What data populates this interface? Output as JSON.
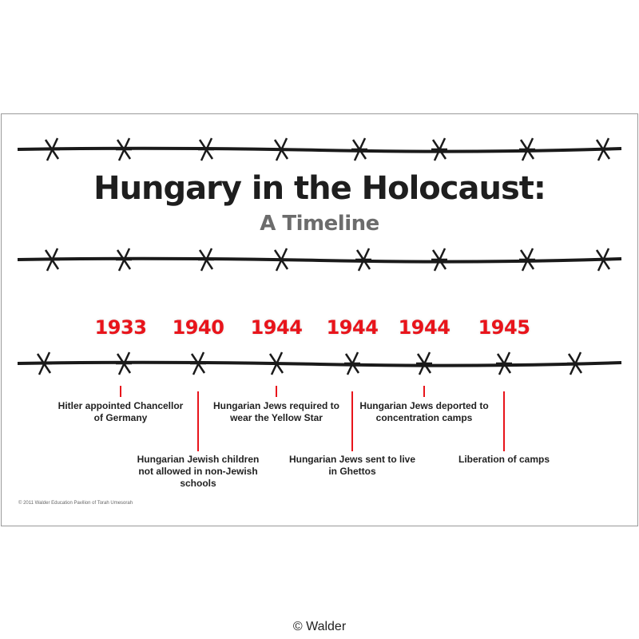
{
  "title": "Hungary in the Holocaust:",
  "subtitle": "A Timeline",
  "events": [
    {
      "year": "1933",
      "text": "Hitler appointed Chancellor of Germany"
    },
    {
      "year": "1940",
      "text": "Hungarian Jewish children not allowed in non-Jewish schools"
    },
    {
      "year": "1944",
      "text": "Hungarian Jews required to wear the Yellow Star"
    },
    {
      "year": "1944",
      "text": "Hungarian Jews sent to live in Ghettos"
    },
    {
      "year": "1944",
      "text": "Hungarian Jews deported to concentration camps"
    },
    {
      "year": "1945",
      "text": "Liberation of camps"
    }
  ],
  "copyright": "© 2011 Walder Education Pavilion of Torah Umesorah",
  "credit": "© Walder",
  "colors": {
    "accent": "#e8141b",
    "wire": "#1a1a1a",
    "subtitle": "#6c6c6c"
  }
}
